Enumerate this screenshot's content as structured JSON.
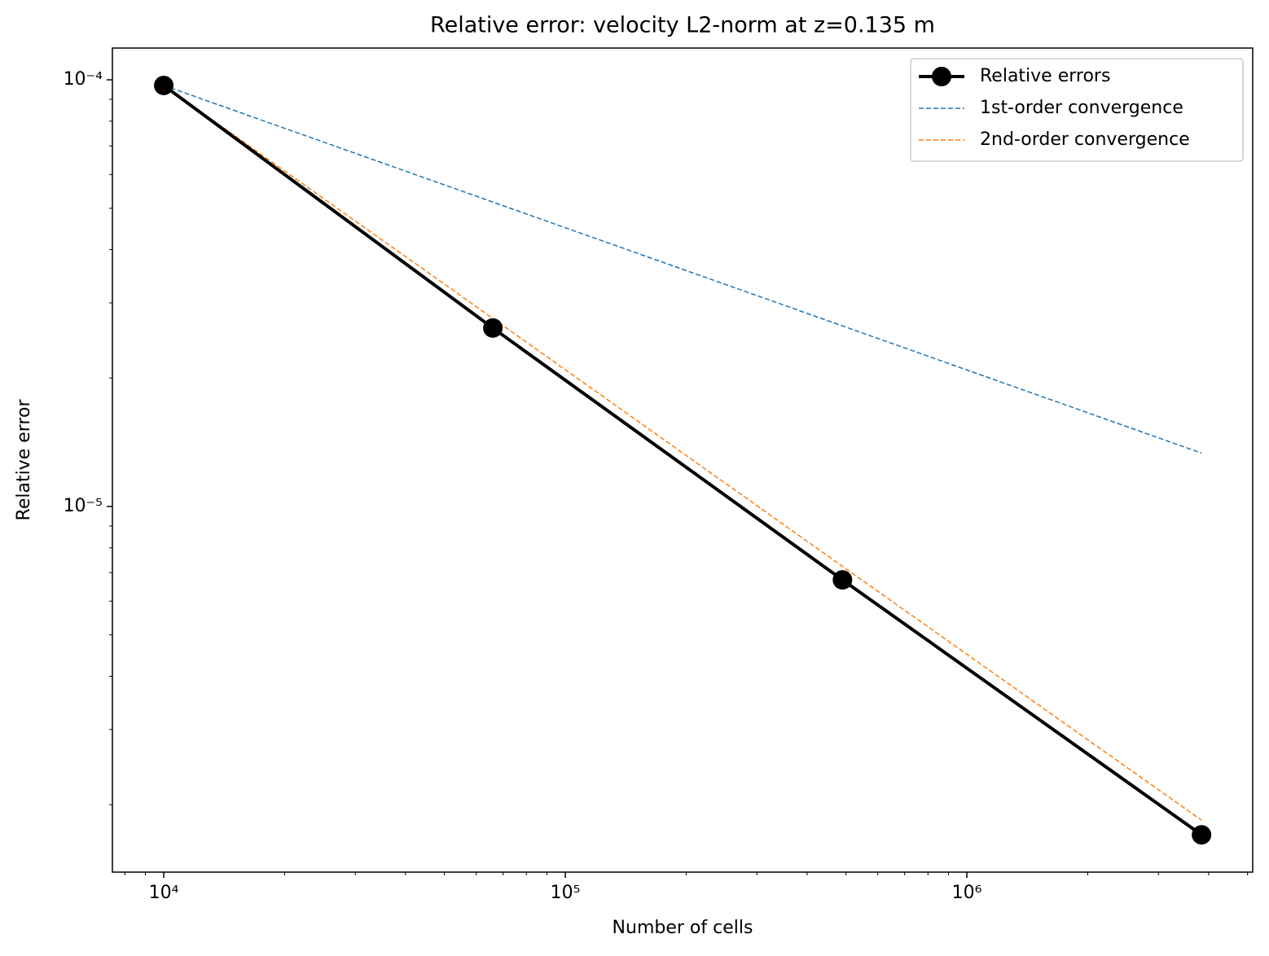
{
  "chart_data": {
    "type": "line",
    "title": "Relative error: velocity L2-norm at z=0.135 m",
    "xlabel": "Number of cells",
    "ylabel": "Relative error",
    "xscale": "log",
    "yscale": "log",
    "x": [
      10000,
      66000,
      490000,
      3840000
    ],
    "series": [
      {
        "name": "Relative errors",
        "color": "#000000",
        "linestyle": "solid",
        "linewidth": 4,
        "marker": "o",
        "values": [
          9.7e-05,
          2.62e-05,
          6.73e-06,
          1.7e-06
        ]
      },
      {
        "name": "1st-order convergence",
        "color": "#1f77b4",
        "linestyle": "dashed",
        "linewidth": 1.5,
        "values": [
          9.7e-05,
          5.17e-05,
          2.65e-05,
          1.334e-05
        ]
      },
      {
        "name": "2nd-order convergence",
        "color": "#ff7f0e",
        "linestyle": "dashed",
        "linewidth": 1.5,
        "values": [
          9.7e-05,
          2.76e-05,
          7.24e-06,
          1.84e-06
        ]
      }
    ],
    "xlim": [
      7450,
      5150000
    ],
    "ylim": [
      1.39e-06,
      0.0001187
    ],
    "xticks": [
      {
        "value": 10000,
        "label": "10⁴"
      },
      {
        "value": 100000,
        "label": "10⁵"
      },
      {
        "value": 1000000,
        "label": "10⁶"
      }
    ],
    "yticks": [
      {
        "value": 1e-05,
        "label": "10⁻⁵"
      },
      {
        "value": 0.0001,
        "label": "10⁻⁴"
      }
    ],
    "xminor_ticks": [
      8000,
      9000,
      20000,
      30000,
      40000,
      50000,
      60000,
      70000,
      80000,
      90000,
      200000,
      300000,
      400000,
      500000,
      600000,
      700000,
      800000,
      900000,
      2000000,
      3000000,
      4000000,
      5000000
    ],
    "yminor_ticks": [
      2e-06,
      3e-06,
      4e-06,
      5e-06,
      6e-06,
      7e-06,
      8e-06,
      9e-06,
      2e-05,
      3e-05,
      4e-05,
      5e-05,
      6e-05,
      7e-05,
      8e-05,
      9e-05
    ],
    "grid": false,
    "legend": "upper right"
  }
}
